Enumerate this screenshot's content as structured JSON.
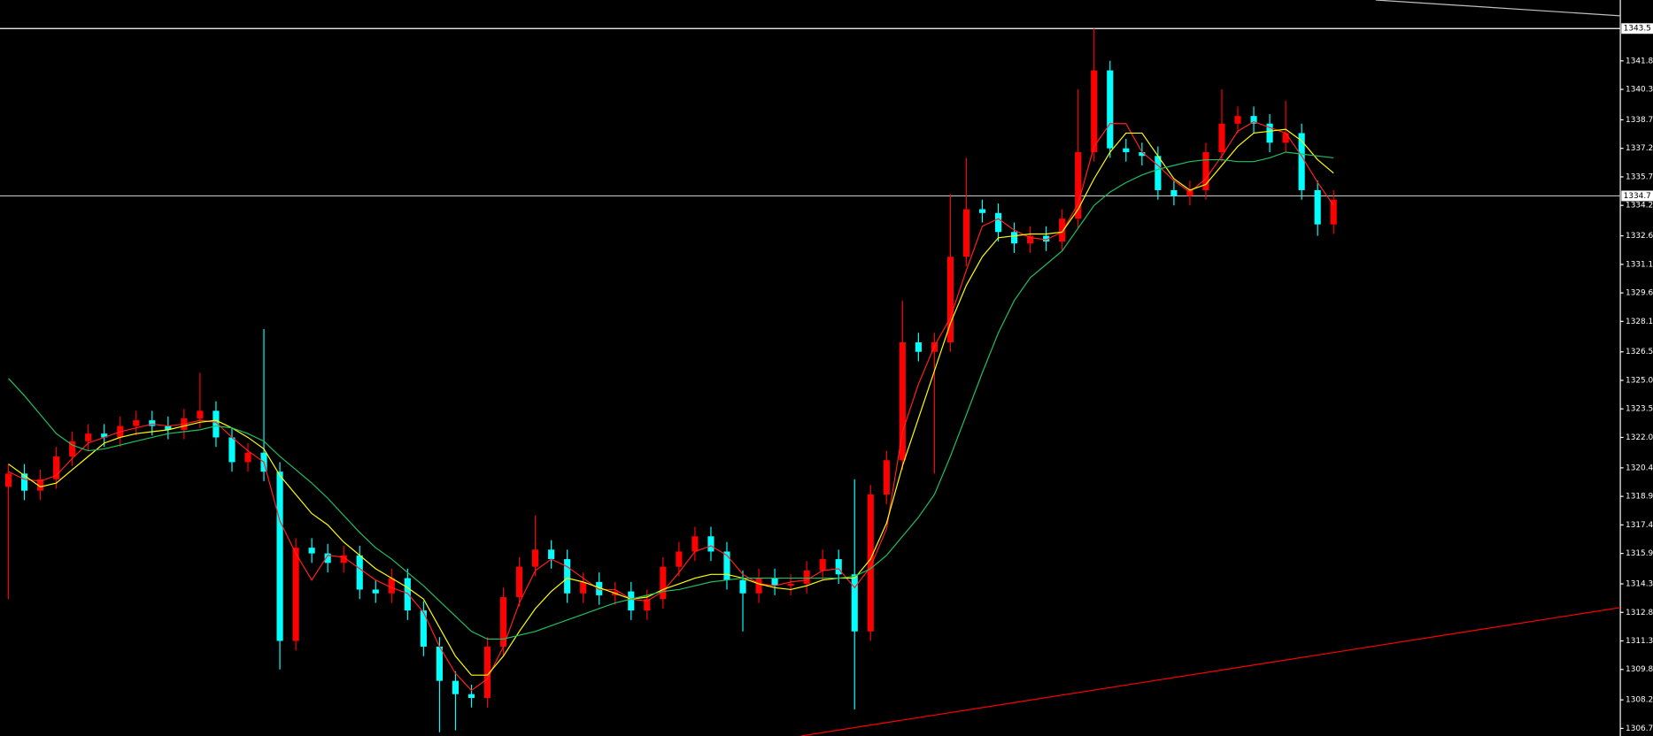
{
  "chart_data": {
    "type": "candlestick",
    "up_color": "#ff0000",
    "down_color": "#00ffff",
    "ylim": [
      1306.3,
      1345.0
    ],
    "yticks": [
      1341.8,
      1340.3,
      1338.7,
      1337.2,
      1335.7,
      1334.2,
      1332.6,
      1331.1,
      1329.6,
      1328.1,
      1326.5,
      {
        "value": 1325,
        "label": "1325.0"
      },
      1323.5,
      {
        "value": 1322,
        "label": "1322.0"
      },
      1320.4,
      1318.9,
      1317.4,
      1315.9,
      1314.3,
      1312.8,
      1311.3,
      1309.8,
      1308.2,
      1306.7
    ],
    "hlines": [
      {
        "value": 1343.5,
        "color": "#ffffff"
      },
      {
        "value": 1334.7,
        "color": "#c0c0c0"
      }
    ],
    "open": [
      1319.4,
      1320.1,
      1319.2,
      1319.8,
      1321.0,
      1321.8,
      1322.2,
      1322.0,
      1322.6,
      1322.9,
      1322.6,
      1322.4,
      1323.0,
      1323.4,
      1322.0,
      1320.7,
      1321.2,
      1320.2,
      1311.3,
      1316.2,
      1315.9,
      1315.4,
      1315.8,
      1314.0,
      1313.8,
      1314.6,
      1312.9,
      1311.0,
      1309.2,
      1308.5,
      1308.3,
      1311.0,
      1313.6,
      1315.2,
      1316.1,
      1315.6,
      1313.8,
      1314.4,
      1313.7,
      1313.9,
      1312.9,
      1313.5,
      1315.2,
      1316.0,
      1316.8,
      1316.0,
      1314.5,
      1313.8,
      1314.6,
      1314.2,
      1314.3,
      1315.0,
      1315.6,
      1314.8,
      1311.8,
      1319.0,
      1320.8,
      1327.0,
      1326.5,
      1327.0,
      1331.5,
      1334.0,
      1333.8,
      1332.8,
      1332.2,
      1332.6,
      1332.3,
      1333.5,
      1337.0,
      1341.3,
      1337.2,
      1337.0,
      1336.8,
      1335.0,
      1334.7,
      1335.0,
      1337.0,
      1338.5,
      1338.9,
      1338.5,
      1337.5,
      1338.0,
      1335.0,
      1333.2
    ],
    "high": [
      1320.6,
      1320.6,
      1320.3,
      1321.5,
      1322.3,
      1322.7,
      1322.7,
      1323.1,
      1323.4,
      1323.4,
      1323.1,
      1323.5,
      1325.4,
      1323.9,
      1322.5,
      1321.7,
      1327.7,
      1320.7,
      1316.7,
      1316.7,
      1316.4,
      1316.3,
      1316.3,
      1314.5,
      1315.1,
      1315.1,
      1313.4,
      1311.5,
      1309.7,
      1309.0,
      1311.5,
      1314.1,
      1315.7,
      1317.9,
      1316.6,
      1316.1,
      1314.9,
      1314.9,
      1314.4,
      1314.4,
      1314.0,
      1315.7,
      1316.5,
      1317.3,
      1317.3,
      1316.5,
      1315.0,
      1315.1,
      1315.1,
      1314.8,
      1315.5,
      1316.1,
      1316.1,
      1319.8,
      1319.5,
      1321.3,
      1329.2,
      1327.5,
      1327.5,
      1334.8,
      1336.7,
      1334.5,
      1334.3,
      1333.3,
      1333.1,
      1333.1,
      1334.0,
      1340.3,
      1343.5,
      1341.8,
      1337.7,
      1337.5,
      1337.3,
      1335.5,
      1335.5,
      1337.5,
      1340.3,
      1339.4,
      1339.4,
      1339.0,
      1339.7,
      1338.5,
      1335.5,
      1335.0
    ],
    "low": [
      1313.5,
      1318.7,
      1318.7,
      1319.3,
      1320.5,
      1321.3,
      1321.5,
      1321.5,
      1322.1,
      1322.1,
      1321.9,
      1321.9,
      1322.5,
      1321.5,
      1320.2,
      1320.2,
      1319.7,
      1309.8,
      1310.8,
      1315.4,
      1314.9,
      1314.9,
      1313.5,
      1313.3,
      1313.3,
      1312.4,
      1310.5,
      1306.5,
      1306.6,
      1307.8,
      1307.8,
      1310.5,
      1313.1,
      1314.7,
      1315.1,
      1313.3,
      1313.3,
      1313.2,
      1313.2,
      1312.4,
      1312.4,
      1313.0,
      1314.7,
      1315.5,
      1315.5,
      1314.0,
      1311.8,
      1313.3,
      1313.7,
      1313.7,
      1313.8,
      1314.5,
      1314.3,
      1307.7,
      1311.3,
      1318.5,
      1320.3,
      1326.0,
      1320.1,
      1326.5,
      1331.0,
      1333.3,
      1332.3,
      1331.7,
      1331.7,
      1331.8,
      1331.8,
      1333.0,
      1336.5,
      1336.7,
      1336.5,
      1336.3,
      1334.5,
      1334.2,
      1334.2,
      1334.5,
      1336.5,
      1338.0,
      1338.0,
      1337.0,
      1337.0,
      1334.5,
      1332.6,
      1332.7
    ],
    "close": [
      1320.1,
      1319.2,
      1319.8,
      1321.0,
      1321.8,
      1322.2,
      1322.0,
      1322.6,
      1322.9,
      1322.6,
      1322.4,
      1323.0,
      1323.4,
      1322.0,
      1320.7,
      1321.2,
      1320.2,
      1311.3,
      1316.2,
      1315.9,
      1315.4,
      1315.8,
      1314.0,
      1313.8,
      1314.6,
      1312.9,
      1311.0,
      1309.2,
      1308.5,
      1308.3,
      1311.0,
      1313.6,
      1315.2,
      1316.1,
      1315.6,
      1313.8,
      1314.4,
      1313.7,
      1313.9,
      1312.9,
      1313.5,
      1315.2,
      1316.0,
      1316.8,
      1316.0,
      1314.5,
      1313.8,
      1314.6,
      1314.2,
      1314.3,
      1315.0,
      1315.6,
      1314.8,
      1311.8,
      1319.0,
      1320.8,
      1327.0,
      1326.5,
      1327.0,
      1331.5,
      1334.0,
      1333.8,
      1332.8,
      1332.2,
      1332.6,
      1332.3,
      1333.5,
      1337.0,
      1341.3,
      1337.2,
      1337.0,
      1336.8,
      1335.0,
      1334.7,
      1335.0,
      1337.0,
      1338.5,
      1338.9,
      1338.5,
      1337.5,
      1338.0,
      1335.0,
      1333.2,
      1334.5
    ],
    "lines": [
      {
        "color": "#ff2020",
        "values": [
          1320.2,
          1319.8,
          1319.7,
          1320.0,
          1320.9,
          1321.7,
          1322.0,
          1322.3,
          1322.5,
          1322.7,
          1322.6,
          1322.7,
          1322.9,
          1322.8,
          1322.0,
          1321.3,
          1320.7,
          1317.6,
          1315.9,
          1314.5,
          1315.8,
          1315.7,
          1315.1,
          1314.5,
          1314.1,
          1313.8,
          1312.8,
          1311.0,
          1309.6,
          1308.7,
          1309.3,
          1311.0,
          1313.3,
          1315.0,
          1315.6,
          1315.2,
          1314.6,
          1314.0,
          1314.0,
          1313.5,
          1313.4,
          1313.9,
          1314.9,
          1316.0,
          1316.3,
          1315.8,
          1314.8,
          1314.3,
          1314.2,
          1314.4,
          1314.5,
          1315.0,
          1315.1,
          1314.1,
          1315.2,
          1317.2,
          1322.3,
          1324.8,
          1326.8,
          1328.3,
          1330.8,
          1333.1,
          1333.5,
          1332.9,
          1332.5,
          1332.4,
          1332.8,
          1334.3,
          1337.3,
          1338.5,
          1338.5,
          1337.0,
          1336.3,
          1335.5,
          1334.9,
          1335.6,
          1336.8,
          1338.1,
          1338.6,
          1338.3,
          1338.0,
          1336.8,
          1335.4,
          1334.2
        ]
      },
      {
        "color": "#ffff00",
        "values": [
          1320.6,
          1320.0,
          1319.4,
          1319.6,
          1320.3,
          1321.0,
          1321.7,
          1322.0,
          1322.2,
          1322.3,
          1322.4,
          1322.6,
          1322.8,
          1322.9,
          1322.5,
          1322.0,
          1321.4,
          1320.0,
          1319.0,
          1318.0,
          1317.4,
          1316.5,
          1315.8,
          1315.1,
          1314.6,
          1314.1,
          1313.5,
          1312.0,
          1310.5,
          1309.5,
          1309.5,
          1310.5,
          1311.8,
          1313.0,
          1313.9,
          1314.6,
          1314.4,
          1314.1,
          1313.8,
          1313.5,
          1313.6,
          1314.0,
          1314.3,
          1314.6,
          1314.8,
          1314.8,
          1314.6,
          1314.3,
          1314.1,
          1314.0,
          1314.2,
          1314.5,
          1314.6,
          1314.6,
          1315.6,
          1317.5,
          1320.5,
          1323.0,
          1325.5,
          1328.0,
          1330.0,
          1331.5,
          1332.5,
          1332.6,
          1332.7,
          1332.7,
          1332.8,
          1334.0,
          1335.6,
          1337.0,
          1338.0,
          1338.0,
          1336.8,
          1335.6,
          1335.0,
          1335.3,
          1336.3,
          1337.3,
          1338.0,
          1338.1,
          1338.2,
          1337.6,
          1336.6,
          1335.9
        ]
      },
      {
        "color": "#20c060",
        "values": [
          1325.1,
          1324.2,
          1323.2,
          1322.2,
          1321.6,
          1321.3,
          1321.4,
          1321.6,
          1321.8,
          1322.0,
          1322.2,
          1322.3,
          1322.4,
          1322.6,
          1322.5,
          1322.2,
          1321.8,
          1321.0,
          1320.3,
          1319.6,
          1318.8,
          1317.9,
          1317.0,
          1316.2,
          1315.6,
          1314.9,
          1314.2,
          1313.4,
          1312.6,
          1311.8,
          1311.4,
          1311.4,
          1311.6,
          1311.8,
          1312.1,
          1312.4,
          1312.7,
          1313.0,
          1313.3,
          1313.5,
          1313.7,
          1313.9,
          1314.0,
          1314.2,
          1314.4,
          1314.5,
          1314.6,
          1314.6,
          1314.6,
          1314.6,
          1314.6,
          1314.6,
          1314.6,
          1314.7,
          1315.1,
          1315.8,
          1316.8,
          1317.8,
          1319.0,
          1321.0,
          1323.2,
          1325.4,
          1327.5,
          1329.2,
          1330.4,
          1331.1,
          1331.8,
          1333.0,
          1334.2,
          1334.9,
          1335.4,
          1335.8,
          1336.1,
          1336.3,
          1336.5,
          1336.6,
          1336.6,
          1336.5,
          1336.5,
          1336.7,
          1337.0,
          1336.9,
          1336.8,
          1336.7
        ]
      }
    ]
  }
}
